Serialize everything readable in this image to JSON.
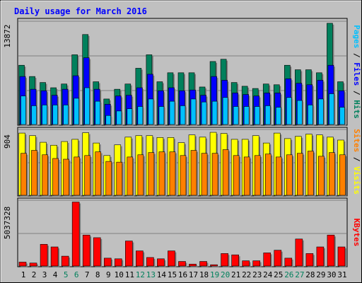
{
  "title": "Daily usage for March 2016",
  "colors": {
    "background": "#c0c0c0",
    "title": "#0000ff",
    "grid": "#808080",
    "hits": "#00805c",
    "files": "#0000ff",
    "pages": "#00c0ff",
    "visits": "#ffff00",
    "sites": "#ff8000",
    "kbytes": "#ff0000",
    "weekday_label": "#000080",
    "weekend_label": "#00805c"
  },
  "chart_data": [
    {
      "type": "bar",
      "panel": "hits-files-pages",
      "ymax_label": "13872",
      "ylim": [
        0,
        13872
      ],
      "categories": [
        "1",
        "2",
        "3",
        "4",
        "5",
        "6",
        "7",
        "8",
        "9",
        "10",
        "11",
        "12",
        "13",
        "14",
        "15",
        "16",
        "17",
        "18",
        "19",
        "20",
        "21",
        "22",
        "23",
        "24",
        "25",
        "26",
        "27",
        "28",
        "29",
        "30",
        "31"
      ],
      "weekend_days": [
        "5",
        "6",
        "12",
        "13",
        "19",
        "20",
        "26",
        "27"
      ],
      "series": [
        {
          "name": "Hits",
          "values": [
            8000,
            6500,
            5700,
            5000,
            5500,
            9400,
            12100,
            5800,
            3500,
            4800,
            5500,
            7600,
            9400,
            5800,
            7000,
            7000,
            7000,
            5100,
            8500,
            8800,
            5700,
            5200,
            4900,
            5500,
            5400,
            8000,
            7400,
            7400,
            7000,
            13600,
            5800
          ]
        },
        {
          "name": "Files",
          "values": [
            6500,
            4800,
            4600,
            4000,
            4800,
            6600,
            9000,
            4800,
            2800,
            3900,
            4000,
            5000,
            6800,
            4600,
            5000,
            4600,
            4700,
            4000,
            6500,
            6000,
            4300,
            4100,
            3900,
            4300,
            4300,
            6200,
            5600,
            5400,
            6000,
            8000,
            4600
          ]
        },
        {
          "name": "Pages",
          "values": [
            3900,
            2600,
            2700,
            2700,
            2700,
            3600,
            5000,
            3200,
            1300,
            1900,
            2200,
            2500,
            3500,
            2500,
            3200,
            2600,
            3500,
            3100,
            3200,
            3700,
            2500,
            2500,
            2500,
            2600,
            2400,
            3700,
            3300,
            2700,
            3500,
            4200,
            2400
          ]
        }
      ]
    },
    {
      "type": "bar",
      "panel": "visits-sites",
      "ymax_label": "904",
      "ylim": [
        0,
        904
      ],
      "series": [
        {
          "name": "Visits",
          "values": [
            855,
            820,
            730,
            690,
            740,
            770,
            860,
            720,
            550,
            695,
            800,
            820,
            820,
            795,
            795,
            725,
            830,
            800,
            865,
            850,
            770,
            770,
            820,
            720,
            855,
            780,
            810,
            840,
            830,
            800,
            760
          ]
        },
        {
          "name": "Sites",
          "values": [
            580,
            620,
            560,
            510,
            500,
            530,
            550,
            600,
            470,
            460,
            530,
            560,
            590,
            600,
            600,
            550,
            620,
            580,
            580,
            630,
            550,
            530,
            550,
            570,
            530,
            560,
            580,
            610,
            540,
            590,
            560
          ]
        }
      ]
    },
    {
      "type": "bar",
      "panel": "kbytes",
      "ymax_label": "5037328",
      "ylim": [
        0,
        5037328
      ],
      "series": [
        {
          "name": "KBytes",
          "values": [
            350000,
            280000,
            1700000,
            1500000,
            800000,
            4900000,
            2400000,
            2200000,
            650000,
            600000,
            1950000,
            1200000,
            700000,
            600000,
            1200000,
            400000,
            200000,
            400000,
            150000,
            1000000,
            900000,
            450000,
            450000,
            1050000,
            1250000,
            650000,
            2100000,
            1000000,
            1500000,
            2400000,
            1500000
          ]
        }
      ]
    }
  ],
  "right_labels": {
    "top": [
      {
        "text": "Pages",
        "color": "#00c0ff"
      },
      {
        "text": " / ",
        "color": "#000000"
      },
      {
        "text": "Files",
        "color": "#0000ff"
      },
      {
        "text": " / ",
        "color": "#000000"
      },
      {
        "text": "Hits",
        "color": "#00805c"
      }
    ],
    "middle": [
      {
        "text": "Sites",
        "color": "#ff8000"
      },
      {
        "text": " / ",
        "color": "#000000"
      },
      {
        "text": "Visits",
        "color": "#ffff00"
      }
    ],
    "bottom": [
      {
        "text": "KBytes",
        "color": "#ff0000"
      }
    ]
  }
}
